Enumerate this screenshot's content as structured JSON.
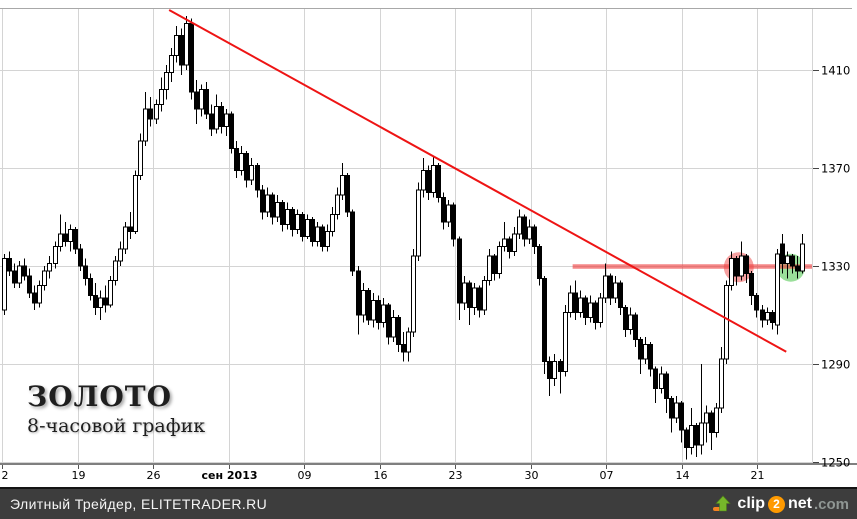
{
  "chart": {
    "title": "ЗОЛОТО",
    "subtitle": "8-часовой график"
  },
  "chart_data": {
    "type": "candlestick",
    "title": "ЗОЛОТО",
    "subtitle": "8-часовой график",
    "grid": true,
    "ylim": [
      1249.6,
      1435.3
    ],
    "y_ticks": [
      1410,
      1370,
      1330,
      1290,
      1250
    ],
    "x_ticks": [
      {
        "label": "2",
        "bold": false
      },
      {
        "label": "19",
        "bold": false
      },
      {
        "label": "26",
        "bold": false
      },
      {
        "label": "сен 2013",
        "bold": true
      },
      {
        "label": "09",
        "bold": false
      },
      {
        "label": "16",
        "bold": false
      },
      {
        "label": "23",
        "bold": false
      },
      {
        "label": "30",
        "bold": false
      },
      {
        "label": "07",
        "bold": false
      },
      {
        "label": "14",
        "bold": false
      },
      {
        "label": "21",
        "bold": false
      }
    ],
    "style": {
      "up_fill": "#ffffff",
      "down_fill": "#000000",
      "stroke": "#000000",
      "grid_color": "#d4d4d4",
      "axis_color": "#7f7f7f",
      "top_border_color": "#a8a8a8"
    },
    "annotations": {
      "trendline": {
        "from_bar": 32.7,
        "from_price": 1434.5,
        "to_bar": 154.9,
        "to_price": 1295,
        "color": "#ee1414",
        "width": 2
      },
      "hline": {
        "price": 1329.8,
        "from_bar": 112.6,
        "to_bar": 160,
        "color": "rgba(238,60,60,0.62)",
        "width": 4.5
      },
      "circles": [
        {
          "name": "red-circle",
          "bar": 145.5,
          "price": 1329.5,
          "radius": 15,
          "color": "rgba(240,96,96,0.60)"
        },
        {
          "name": "green-circle",
          "bar": 155.8,
          "price": 1329.3,
          "radius": 14,
          "color": "rgba(92,204,92,0.62)"
        }
      ]
    },
    "ohlc": [
      [
        1312,
        1335,
        1310,
        1333
      ],
      [
        1333,
        1336,
        1326,
        1328
      ],
      [
        1328,
        1331,
        1321,
        1323
      ],
      [
        1323,
        1332,
        1321,
        1330
      ],
      [
        1330,
        1333,
        1324,
        1326
      ],
      [
        1326,
        1329,
        1317,
        1319
      ],
      [
        1319,
        1322,
        1312,
        1315
      ],
      [
        1315,
        1324,
        1313,
        1322
      ],
      [
        1322,
        1330,
        1320,
        1328
      ],
      [
        1328,
        1334,
        1325,
        1331
      ],
      [
        1331,
        1340,
        1329,
        1338
      ],
      [
        1338,
        1351,
        1336,
        1343
      ],
      [
        1343,
        1348,
        1338,
        1340
      ],
      [
        1340,
        1347,
        1336,
        1345
      ],
      [
        1345,
        1346,
        1335,
        1337
      ],
      [
        1337,
        1339,
        1328,
        1330
      ],
      [
        1330,
        1333,
        1322,
        1325
      ],
      [
        1325,
        1327,
        1316,
        1318
      ],
      [
        1318,
        1323,
        1310,
        1313
      ],
      [
        1313,
        1320,
        1308,
        1317
      ],
      [
        1317,
        1322,
        1311,
        1314
      ],
      [
        1314,
        1326,
        1313,
        1324
      ],
      [
        1324,
        1334,
        1322,
        1332
      ],
      [
        1332,
        1340,
        1330,
        1337
      ],
      [
        1337,
        1348,
        1335,
        1346
      ],
      [
        1346,
        1352,
        1341,
        1344
      ],
      [
        1344,
        1369,
        1343,
        1367
      ],
      [
        1367,
        1384,
        1365,
        1381
      ],
      [
        1381,
        1401,
        1379,
        1394
      ],
      [
        1394,
        1399,
        1387,
        1390
      ],
      [
        1390,
        1398,
        1388,
        1396
      ],
      [
        1396,
        1407,
        1393,
        1402
      ],
      [
        1402,
        1412,
        1398,
        1409
      ],
      [
        1409,
        1419,
        1405,
        1416
      ],
      [
        1416,
        1428,
        1413,
        1424
      ],
      [
        1424,
        1427,
        1408,
        1412
      ],
      [
        1412,
        1432,
        1410,
        1429
      ],
      [
        1429,
        1431,
        1398,
        1401
      ],
      [
        1401,
        1406,
        1388,
        1394
      ],
      [
        1394,
        1404,
        1391,
        1402
      ],
      [
        1402,
        1405,
        1390,
        1392
      ],
      [
        1392,
        1396,
        1383,
        1386
      ],
      [
        1386,
        1400,
        1384,
        1395
      ],
      [
        1395,
        1397,
        1384,
        1387
      ],
      [
        1387,
        1394,
        1383,
        1392
      ],
      [
        1392,
        1393,
        1376,
        1378
      ],
      [
        1378,
        1381,
        1366,
        1369
      ],
      [
        1369,
        1379,
        1367,
        1376
      ],
      [
        1376,
        1377,
        1362,
        1365
      ],
      [
        1365,
        1374,
        1363,
        1371
      ],
      [
        1371,
        1372,
        1358,
        1361
      ],
      [
        1361,
        1363,
        1349,
        1352
      ],
      [
        1352,
        1362,
        1350,
        1359
      ],
      [
        1359,
        1360,
        1347,
        1350
      ],
      [
        1350,
        1359,
        1348,
        1356
      ],
      [
        1356,
        1357,
        1344,
        1347
      ],
      [
        1347,
        1356,
        1345,
        1353
      ],
      [
        1353,
        1354,
        1342,
        1345
      ],
      [
        1345,
        1353,
        1343,
        1351
      ],
      [
        1351,
        1352,
        1340,
        1342
      ],
      [
        1342,
        1351,
        1341,
        1349
      ],
      [
        1349,
        1350,
        1338,
        1340
      ],
      [
        1340,
        1348,
        1338,
        1346
      ],
      [
        1346,
        1347,
        1336,
        1338
      ],
      [
        1338,
        1347,
        1336,
        1344
      ],
      [
        1344,
        1354,
        1342,
        1351
      ],
      [
        1351,
        1362,
        1349,
        1359
      ],
      [
        1359,
        1372,
        1357,
        1367
      ],
      [
        1367,
        1368,
        1350,
        1352
      ],
      [
        1352,
        1353,
        1326,
        1328
      ],
      [
        1328,
        1330,
        1302,
        1310
      ],
      [
        1310,
        1323,
        1307,
        1320
      ],
      [
        1320,
        1321,
        1306,
        1308
      ],
      [
        1308,
        1319,
        1305,
        1316
      ],
      [
        1316,
        1318,
        1304,
        1307
      ],
      [
        1307,
        1317,
        1305,
        1314
      ],
      [
        1314,
        1315,
        1298,
        1301
      ],
      [
        1301,
        1312,
        1299,
        1309
      ],
      [
        1309,
        1310,
        1295,
        1298
      ],
      [
        1298,
        1303,
        1291,
        1295
      ],
      [
        1295,
        1305,
        1291,
        1303
      ],
      [
        1303,
        1337,
        1301,
        1334
      ],
      [
        1334,
        1364,
        1332,
        1361
      ],
      [
        1361,
        1374,
        1358,
        1369
      ],
      [
        1369,
        1371,
        1357,
        1360
      ],
      [
        1360,
        1375,
        1358,
        1371
      ],
      [
        1371,
        1372,
        1356,
        1358
      ],
      [
        1358,
        1360,
        1345,
        1348
      ],
      [
        1348,
        1357,
        1346,
        1355
      ],
      [
        1355,
        1356,
        1338,
        1341
      ],
      [
        1341,
        1342,
        1308,
        1315
      ],
      [
        1315,
        1326,
        1312,
        1323
      ],
      [
        1323,
        1324,
        1306,
        1313
      ],
      [
        1313,
        1323,
        1310,
        1321
      ],
      [
        1321,
        1322,
        1309,
        1312
      ],
      [
        1312,
        1326,
        1310,
        1324
      ],
      [
        1324,
        1337,
        1322,
        1334
      ],
      [
        1334,
        1335,
        1324,
        1327
      ],
      [
        1327,
        1340,
        1325,
        1338
      ],
      [
        1338,
        1348,
        1336,
        1341
      ],
      [
        1341,
        1342,
        1333,
        1336
      ],
      [
        1336,
        1346,
        1334,
        1343
      ],
      [
        1343,
        1353,
        1341,
        1350
      ],
      [
        1350,
        1351,
        1338,
        1341
      ],
      [
        1341,
        1349,
        1339,
        1346
      ],
      [
        1346,
        1347,
        1335,
        1338
      ],
      [
        1338,
        1339,
        1322,
        1325
      ],
      [
        1325,
        1326,
        1286,
        1291
      ],
      [
        1291,
        1293,
        1277,
        1284
      ],
      [
        1284,
        1294,
        1281,
        1291
      ],
      [
        1291,
        1292,
        1278,
        1287
      ],
      [
        1287,
        1314,
        1285,
        1311
      ],
      [
        1311,
        1322,
        1309,
        1319
      ],
      [
        1319,
        1324,
        1308,
        1311
      ],
      [
        1311,
        1320,
        1309,
        1317
      ],
      [
        1317,
        1318,
        1306,
        1309
      ],
      [
        1309,
        1318,
        1307,
        1315
      ],
      [
        1315,
        1316,
        1304,
        1307
      ],
      [
        1307,
        1319,
        1305,
        1317
      ],
      [
        1317,
        1331,
        1315,
        1326
      ],
      [
        1326,
        1327,
        1314,
        1317
      ],
      [
        1317,
        1326,
        1315,
        1323
      ],
      [
        1323,
        1324,
        1310,
        1313
      ],
      [
        1313,
        1314,
        1301,
        1304
      ],
      [
        1304,
        1313,
        1302,
        1310
      ],
      [
        1310,
        1311,
        1297,
        1300
      ],
      [
        1300,
        1301,
        1286,
        1292
      ],
      [
        1292,
        1301,
        1290,
        1298
      ],
      [
        1298,
        1299,
        1285,
        1288
      ],
      [
        1288,
        1289,
        1274,
        1280
      ],
      [
        1280,
        1289,
        1278,
        1286
      ],
      [
        1286,
        1287,
        1270,
        1276
      ],
      [
        1276,
        1277,
        1262,
        1268
      ],
      [
        1268,
        1277,
        1266,
        1274
      ],
      [
        1274,
        1275,
        1258,
        1263
      ],
      [
        1263,
        1264,
        1251,
        1256
      ],
      [
        1256,
        1272,
        1253,
        1265
      ],
      [
        1265,
        1266,
        1252,
        1257
      ],
      [
        1257,
        1290,
        1253,
        1266
      ],
      [
        1266,
        1273,
        1258,
        1270
      ],
      [
        1270,
        1271,
        1255,
        1262
      ],
      [
        1262,
        1274,
        1260,
        1272
      ],
      [
        1272,
        1297,
        1270,
        1292
      ],
      [
        1292,
        1324,
        1290,
        1322
      ],
      [
        1322,
        1336,
        1320,
        1333
      ],
      [
        1333,
        1334,
        1322,
        1326
      ],
      [
        1326,
        1340,
        1324,
        1334
      ],
      [
        1334,
        1335,
        1323,
        1327
      ],
      [
        1327,
        1328,
        1314,
        1318
      ],
      [
        1318,
        1319,
        1309,
        1312
      ],
      [
        1312,
        1314,
        1305,
        1308
      ],
      [
        1308,
        1313,
        1306,
        1311
      ],
      [
        1311,
        1312,
        1304,
        1307
      ],
      [
        1306,
        1337,
        1302,
        1335
      ],
      [
        1339,
        1343,
        1327,
        1331
      ],
      [
        1331,
        1336,
        1325,
        1334
      ],
      [
        1334,
        1335,
        1327,
        1330
      ],
      [
        1330,
        1334,
        1325,
        1328
      ],
      [
        1328,
        1343,
        1327,
        1339
      ]
    ]
  },
  "footer": {
    "credit": "Элитный Трейдер, ELITETRADER.RU",
    "logo": {
      "clip": "clip",
      "two": "2",
      "net": "net",
      "com": ".com"
    }
  }
}
